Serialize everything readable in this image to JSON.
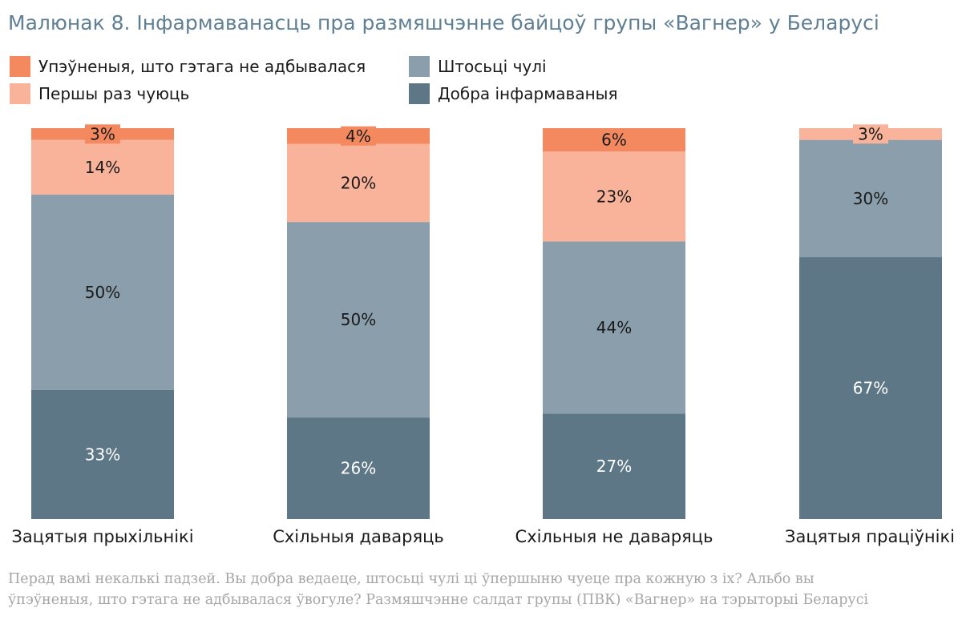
{
  "title": "Малюнак 8. Інфармаванасць пра размяшчэнне байцоў групы «Вагнер» у Беларусі",
  "legend": [
    {
      "label": "Упэўненыя, што гэтага не адбывалася",
      "color": "#f4895f"
    },
    {
      "label": "Штосьці чулі",
      "color": "#8a9fab"
    },
    {
      "label": "Першы раз чуюць",
      "color": "#f8b39a"
    },
    {
      "label": "Добра інфармаваныя",
      "color": "#5e7787"
    }
  ],
  "note": [
    "Перад вамі некалькі падзей. Вы добра ведаеце, штосьці чулі ці ўпершыню чуеце пра кожную з іх? Альбо вы",
    "ўпэўненыя, што гэтага не адбывалася ўвогуле? Размяшчэнне салдат групы (ПВК) «Вагнер» на тэрыторыі Беларусі"
  ],
  "chart_data": {
    "type": "bar",
    "stacked": true,
    "percent": true,
    "ylim": [
      0,
      100
    ],
    "categories": [
      "Зацятыя прыхільнікі",
      "Схільныя даваряць",
      "Схільныя не даваряць",
      "Зацятыя праціўнікі"
    ],
    "series": [
      {
        "name": "Добра інфармаваныя",
        "color": "#5e7787",
        "label_color": "#ffffff",
        "values": [
          33,
          26,
          27,
          67
        ]
      },
      {
        "name": "Штосьці чулі",
        "color": "#8a9fab",
        "label_color": "#1a1a1a",
        "values": [
          50,
          50,
          44,
          30
        ]
      },
      {
        "name": "Першы раз чуюць",
        "color": "#f8b39a",
        "label_color": "#1a1a1a",
        "values": [
          14,
          20,
          23,
          3
        ]
      },
      {
        "name": "Упэўненыя, што гэтага не адбывалася",
        "color": "#f4895f",
        "label_color": "#1a1a1a",
        "values": [
          3,
          4,
          6,
          0
        ]
      }
    ]
  }
}
